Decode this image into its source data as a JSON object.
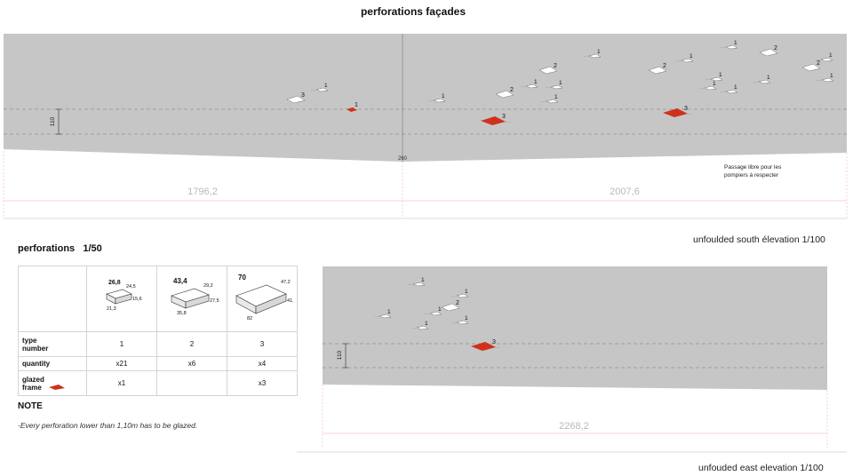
{
  "title": "perforations façades",
  "south": {
    "caption": "unfoulded south élevation 1/100",
    "dim_left": "1796,2",
    "dim_right": "2007,6",
    "height_label": "110",
    "fold_label": "260",
    "note_line1": "Passage libre pour les",
    "note_line2": "pompiers à respecter",
    "marks": [
      {
        "label": "1",
        "kind": "small"
      },
      {
        "label": "3",
        "kind": "white"
      },
      {
        "label": "1",
        "kind": "red-small"
      },
      {
        "label": "1",
        "kind": "small"
      },
      {
        "label": "2",
        "kind": "white"
      },
      {
        "label": "1",
        "kind": "small"
      },
      {
        "label": "2",
        "kind": "white"
      },
      {
        "label": "1",
        "kind": "small"
      },
      {
        "label": "1",
        "kind": "small"
      },
      {
        "label": "3",
        "kind": "red"
      },
      {
        "label": "1",
        "kind": "small"
      },
      {
        "label": "2",
        "kind": "white"
      },
      {
        "label": "1",
        "kind": "small"
      },
      {
        "label": "1",
        "kind": "small"
      },
      {
        "label": "1",
        "kind": "small"
      },
      {
        "label": "3",
        "kind": "red"
      },
      {
        "label": "1",
        "kind": "small"
      },
      {
        "label": "2",
        "kind": "white"
      },
      {
        "label": "1",
        "kind": "small"
      },
      {
        "label": "1",
        "kind": "small"
      },
      {
        "label": "2",
        "kind": "white"
      },
      {
        "label": "1",
        "kind": "small"
      },
      {
        "label": "1",
        "kind": "small"
      }
    ]
  },
  "east": {
    "caption": "unfouded east elevation  1/100",
    "dim": "2268,2",
    "height_label": "110",
    "marks": [
      {
        "label": "1",
        "kind": "small"
      },
      {
        "label": "1",
        "kind": "small"
      },
      {
        "label": "2",
        "kind": "white"
      },
      {
        "label": "1",
        "kind": "small"
      },
      {
        "label": "1",
        "kind": "small"
      },
      {
        "label": "1",
        "kind": "small"
      },
      {
        "label": "1",
        "kind": "small"
      },
      {
        "label": "3",
        "kind": "red"
      }
    ]
  },
  "perforations": {
    "heading": "perforations",
    "scale": "1/50",
    "types": [
      {
        "dims": [
          "26,8",
          "24,5",
          "21,3",
          "15,6"
        ]
      },
      {
        "dims": [
          "43,4",
          "29,2",
          "35,8",
          "27,5"
        ]
      },
      {
        "dims": [
          "70",
          "47,2",
          "82",
          "41,7"
        ]
      }
    ],
    "rows": [
      {
        "label_a": "type",
        "label_b": "number",
        "values": [
          "1",
          "2",
          "3"
        ]
      },
      {
        "label_a": "quantity",
        "label_b": "",
        "values": [
          "x21",
          "x6",
          "x4"
        ]
      },
      {
        "label_a": "glazed",
        "label_b": "frame",
        "values": [
          "x1",
          "",
          "x3"
        ]
      }
    ],
    "note_heading": "NOTE",
    "note_text": "-Every perforation lower than 1,10m has to be glazed."
  },
  "colors": {
    "wall": "#c4c4c4",
    "glazed": "#d0311b",
    "opening": "#ffffff",
    "dimension": "#f2a3a3"
  }
}
